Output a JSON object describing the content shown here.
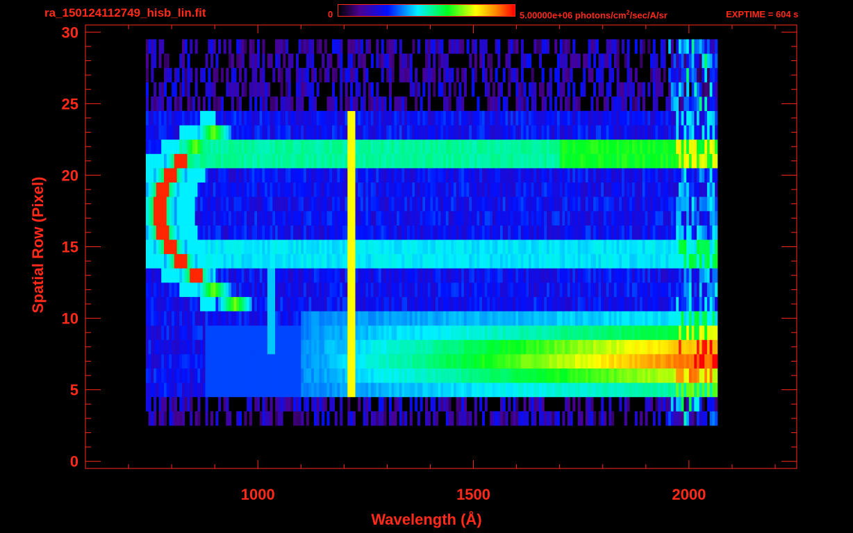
{
  "header": {
    "title": "ra_150124112749_hisb_lin.fit",
    "colorbar_min": "0",
    "colorbar_max_pre": "5.00000e+06 photons/cm",
    "colorbar_max_sup": "2",
    "colorbar_max_post": "/sec/A/sr",
    "exptime": "EXPTIME = 604 s"
  },
  "colors": {
    "axis": "#ff2a1a",
    "background": "#000000"
  },
  "chart_data": {
    "type": "heatmap",
    "xlabel": "Wavelength (Å)",
    "ylabel": "Spatial Row (Pixel)",
    "xlim": [
      600,
      2250
    ],
    "ylim": [
      -0.5,
      30.5
    ],
    "xticks": [
      1000,
      1500,
      2000
    ],
    "yticks": [
      0,
      5,
      10,
      15,
      20,
      25,
      30
    ],
    "colormap": "rainbow",
    "colorbar_range": [
      0,
      5000000
    ],
    "features": [
      {
        "kind": "emission_line",
        "x": 1216,
        "rows": [
          5,
          24
        ]
      },
      {
        "kind": "continuum_band",
        "x": [
          880,
          2060
        ],
        "rows": [
          5,
          10
        ]
      },
      {
        "kind": "arc_feature",
        "x": [
          750,
          900
        ],
        "rows": [
          10,
          24
        ]
      },
      {
        "kind": "band",
        "x": [
          880,
          2060
        ],
        "rows": [
          21,
          22
        ]
      },
      {
        "kind": "band",
        "x": [
          880,
          2060
        ],
        "rows": [
          14,
          15
        ]
      }
    ]
  }
}
